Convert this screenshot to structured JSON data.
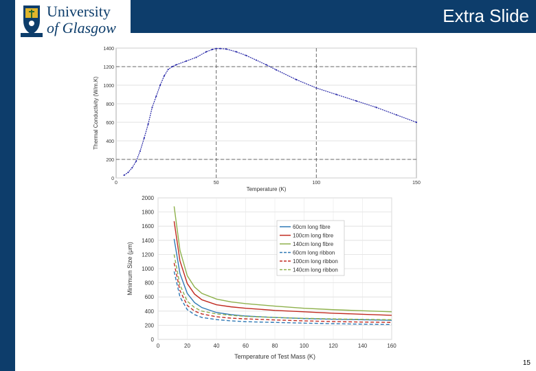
{
  "header": {
    "university_line1": "University",
    "university_line2": "of Glasgow",
    "title": "Extra Slide",
    "accent": "#0d3d6b"
  },
  "footer": {
    "page_number": "15"
  },
  "chart_data": [
    {
      "type": "line",
      "xlabel": "Temperature (K)",
      "ylabel": "Thermal Conductivity (W/m.K)",
      "xlim": [
        0,
        150
      ],
      "ylim": [
        0,
        1400
      ],
      "xticks": [
        0,
        50,
        100,
        150
      ],
      "yticks": [
        0,
        200,
        400,
        600,
        800,
        1000,
        1200,
        1400
      ],
      "reference_lines": {
        "vertical": [
          50,
          100
        ],
        "horizontal": [
          200,
          1200
        ]
      },
      "series": [
        {
          "name": "Thermal conductivity",
          "color": "#2a2aa8",
          "x": [
            4,
            6,
            8,
            10,
            12,
            14,
            16,
            18,
            20,
            22,
            24,
            26,
            28,
            30,
            35,
            40,
            45,
            48,
            50,
            52,
            55,
            60,
            65,
            70,
            75,
            80,
            90,
            100,
            110,
            120,
            130,
            140,
            150
          ],
          "y": [
            30,
            60,
            110,
            180,
            290,
            430,
            580,
            760,
            880,
            1000,
            1100,
            1170,
            1200,
            1220,
            1260,
            1300,
            1360,
            1385,
            1395,
            1395,
            1390,
            1360,
            1320,
            1270,
            1220,
            1165,
            1060,
            970,
            900,
            830,
            760,
            680,
            600
          ]
        }
      ]
    },
    {
      "type": "line",
      "xlabel": "Temperature of Test Mass (K)",
      "ylabel": "Minimum Size (μm)",
      "xlim": [
        0,
        160
      ],
      "ylim": [
        0,
        2000
      ],
      "xticks": [
        0,
        20,
        40,
        60,
        80,
        100,
        120,
        140,
        160
      ],
      "yticks": [
        0,
        200,
        400,
        600,
        800,
        1000,
        1200,
        1400,
        1600,
        1800,
        2000
      ],
      "legend_position": "top-right",
      "series": [
        {
          "name": "60cm long fibre",
          "color": "#2e78b5",
          "dash": "solid",
          "x": [
            11,
            15,
            20,
            25,
            30,
            40,
            50,
            60,
            80,
            100,
            120,
            140,
            160
          ],
          "y": [
            1420,
            930,
            650,
            520,
            450,
            380,
            350,
            330,
            310,
            295,
            285,
            278,
            270
          ]
        },
        {
          "name": "100cm long fibre",
          "color": "#c0281e",
          "dash": "solid",
          "x": [
            11,
            15,
            20,
            25,
            30,
            40,
            50,
            60,
            80,
            100,
            120,
            140,
            160
          ],
          "y": [
            1670,
            1110,
            790,
            640,
            560,
            490,
            460,
            440,
            410,
            390,
            370,
            355,
            340
          ]
        },
        {
          "name": "140cm long fibre",
          "color": "#8db04a",
          "dash": "solid",
          "x": [
            11,
            15,
            20,
            25,
            30,
            40,
            50,
            60,
            80,
            100,
            120,
            140,
            160
          ],
          "y": [
            1880,
            1260,
            900,
            740,
            650,
            570,
            530,
            505,
            470,
            440,
            420,
            405,
            390
          ]
        },
        {
          "name": "60cm long ribbon",
          "color": "#2e78b5",
          "dash": "dashed",
          "x": [
            11,
            15,
            20,
            25,
            30,
            40,
            50,
            60,
            80,
            100,
            120,
            140,
            160
          ],
          "y": [
            960,
            600,
            420,
            350,
            310,
            280,
            262,
            250,
            240,
            230,
            222,
            215,
            210
          ]
        },
        {
          "name": "100cm long ribbon",
          "color": "#c0281e",
          "dash": "dashed",
          "x": [
            11,
            15,
            20,
            25,
            30,
            40,
            50,
            60,
            80,
            100,
            120,
            140,
            160
          ],
          "y": [
            1080,
            690,
            480,
            400,
            360,
            320,
            300,
            290,
            275,
            262,
            252,
            245,
            240
          ]
        },
        {
          "name": "140cm long ribbon",
          "color": "#8db04a",
          "dash": "dashed",
          "x": [
            11,
            15,
            20,
            25,
            30,
            40,
            50,
            60,
            80,
            100,
            120,
            140,
            160
          ],
          "y": [
            1200,
            770,
            540,
            450,
            400,
            360,
            340,
            325,
            310,
            298,
            290,
            283,
            278
          ]
        }
      ]
    }
  ]
}
